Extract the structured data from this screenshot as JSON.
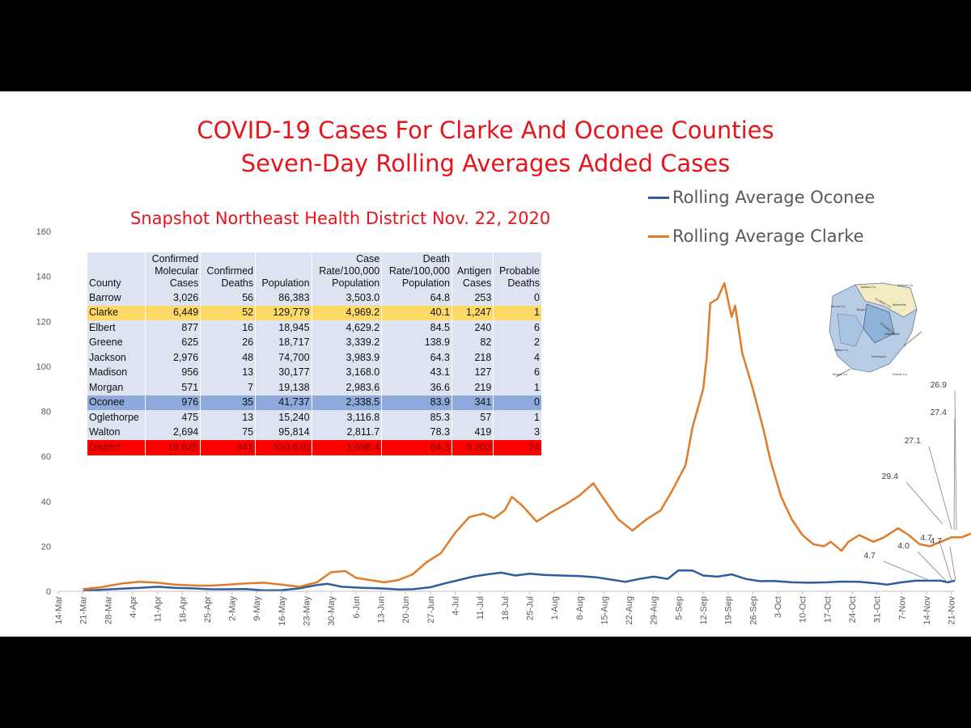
{
  "title": {
    "line1": "COVID-19 Cases For Clarke And Oconee Counties",
    "line2": "Seven-Day Rolling Averages Added Cases"
  },
  "colors": {
    "title": "#e8141c",
    "oconee": "#2e5c9e",
    "clarke": "#e07b2a",
    "clarke_row": "#ffd966",
    "oconee_row": "#8ea9db",
    "district_row": "#ff0000"
  },
  "snapshot": {
    "title": "Snapshot Northeast Health District Nov. 22, 2020",
    "headers": [
      [
        "County"
      ],
      [
        "Confirmed",
        "Molecular",
        "Cases"
      ],
      [
        "Confirmed",
        "Deaths"
      ],
      [
        "Population"
      ],
      [
        "Case",
        "Rate/100,000",
        "Population"
      ],
      [
        "Death",
        "Rate/100,000",
        "Population"
      ],
      [
        "Antigen",
        "Cases"
      ],
      [
        "Probable",
        "Deaths"
      ]
    ],
    "rows": [
      {
        "style": "normal",
        "cells": [
          "Barrow",
          "3,026",
          "56",
          "86,383",
          "3,503.0",
          "64.8",
          "253",
          "0"
        ]
      },
      {
        "style": "clarke",
        "cells": [
          "Clarke",
          "6,449",
          "52",
          "129,779",
          "4,969.2",
          "40.1",
          "1,247",
          "1"
        ]
      },
      {
        "style": "normal",
        "cells": [
          "Elbert",
          "877",
          "16",
          "18,945",
          "4,629.2",
          "84.5",
          "240",
          "6"
        ]
      },
      {
        "style": "normal",
        "cells": [
          "Greene",
          "625",
          "26",
          "18,717",
          "3,339.2",
          "138.9",
          "82",
          "2"
        ]
      },
      {
        "style": "normal",
        "cells": [
          "Jackson",
          "2,976",
          "48",
          "74,700",
          "3,983.9",
          "64.3",
          "218",
          "4"
        ]
      },
      {
        "style": "normal",
        "cells": [
          "Madison",
          "956",
          "13",
          "30,177",
          "3,168.0",
          "43.1",
          "127",
          "6"
        ]
      },
      {
        "style": "normal",
        "cells": [
          "Morgan",
          "571",
          "7",
          "19,138",
          "2,983.6",
          "36.6",
          "219",
          "1"
        ]
      },
      {
        "style": "oconee",
        "cells": [
          "Oconee",
          "976",
          "35",
          "41,737",
          "2,338.5",
          "83.9",
          "341",
          "0"
        ]
      },
      {
        "style": "normal",
        "cells": [
          "Oglethorpe",
          "475",
          "13",
          "15,240",
          "3,116.8",
          "85.3",
          "57",
          "1"
        ]
      },
      {
        "style": "normal",
        "cells": [
          "Walton",
          "2,694",
          "75",
          "95,814",
          "2,811.7",
          "78.3",
          "419",
          "3"
        ]
      },
      {
        "style": "district",
        "cells": [
          "District",
          "19,625",
          "341",
          "530,630",
          "3,698.4",
          "64.3",
          "3,203",
          "24"
        ]
      }
    ]
  },
  "map": {
    "labels": [
      "Jackson Co.",
      "Madison Co.",
      "Barrow Co.",
      "CLARKE CO.",
      "OCONEE CO.",
      "Walton Co.",
      "Morgan Co.",
      "Greene Co.",
      "Bogart",
      "Winterville",
      "Watkinsville",
      "Farmington"
    ],
    "icon": "county-map"
  },
  "chart_data": {
    "type": "line",
    "ylim": [
      0,
      160
    ],
    "yticks": [
      "0",
      "20",
      "40",
      "60",
      "80",
      "100",
      "120",
      "140",
      "160"
    ],
    "x_start": "2020-03-14",
    "x_end": "2020-11-22",
    "xtick_labels": [
      "14-Mar",
      "21-Mar",
      "28-Mar",
      "4-Apr",
      "11-Apr",
      "18-Apr",
      "25-Apr",
      "2-May",
      "9-May",
      "16-May",
      "23-May",
      "30-May",
      "6-Jun",
      "13-Jun",
      "20-Jun",
      "27-Jun",
      "4-Jul",
      "11-Jul",
      "18-Jul",
      "25-Jul",
      "1-Aug",
      "8-Aug",
      "15-Aug",
      "22-Aug",
      "29-Aug",
      "5-Sep",
      "12-Sep",
      "19-Sep",
      "26-Sep",
      "3-Oct",
      "10-Oct",
      "17-Oct",
      "24-Oct",
      "31-Oct",
      "7-Nov",
      "14-Nov",
      "21-Nov"
    ],
    "legend_position": "top-right",
    "series": [
      {
        "name": "Rolling Average Oconee",
        "color": "#2e5c9e",
        "points": [
          [
            "2020-03-21",
            0.2
          ],
          [
            "2020-03-26",
            0.7
          ],
          [
            "2020-04-01",
            1.2
          ],
          [
            "2020-04-06",
            1.5
          ],
          [
            "2020-04-11",
            2.0
          ],
          [
            "2020-04-16",
            1.5
          ],
          [
            "2020-04-21",
            1.3
          ],
          [
            "2020-04-26",
            0.9
          ],
          [
            "2020-05-01",
            0.9
          ],
          [
            "2020-05-06",
            1.0
          ],
          [
            "2020-05-11",
            0.4
          ],
          [
            "2020-05-16",
            0.5
          ],
          [
            "2020-05-21",
            1.3
          ],
          [
            "2020-05-26",
            2.8
          ],
          [
            "2020-05-29",
            3.3
          ],
          [
            "2020-06-02",
            2.0
          ],
          [
            "2020-06-08",
            1.5
          ],
          [
            "2020-06-13",
            1.3
          ],
          [
            "2020-06-18",
            0.8
          ],
          [
            "2020-06-22",
            0.9
          ],
          [
            "2020-06-27",
            1.8
          ],
          [
            "2020-07-01",
            3.5
          ],
          [
            "2020-07-05",
            5.0
          ],
          [
            "2020-07-09",
            6.5
          ],
          [
            "2020-07-13",
            7.5
          ],
          [
            "2020-07-17",
            8.3
          ],
          [
            "2020-07-21",
            7.0
          ],
          [
            "2020-07-25",
            7.8
          ],
          [
            "2020-07-29",
            7.3
          ],
          [
            "2020-08-03",
            7.0
          ],
          [
            "2020-08-08",
            6.8
          ],
          [
            "2020-08-13",
            6.2
          ],
          [
            "2020-08-17",
            5.2
          ],
          [
            "2020-08-21",
            4.2
          ],
          [
            "2020-08-25",
            5.5
          ],
          [
            "2020-08-29",
            6.5
          ],
          [
            "2020-09-02",
            5.5
          ],
          [
            "2020-09-05",
            9.3
          ],
          [
            "2020-09-09",
            9.2
          ],
          [
            "2020-09-12",
            7.0
          ],
          [
            "2020-09-16",
            6.5
          ],
          [
            "2020-09-20",
            7.5
          ],
          [
            "2020-09-24",
            5.5
          ],
          [
            "2020-09-28",
            4.5
          ],
          [
            "2020-10-02",
            4.6
          ],
          [
            "2020-10-07",
            4.0
          ],
          [
            "2020-10-12",
            3.8
          ],
          [
            "2020-10-17",
            4.0
          ],
          [
            "2020-10-21",
            4.3
          ],
          [
            "2020-10-26",
            4.2
          ],
          [
            "2020-10-31",
            3.5
          ],
          [
            "2020-11-03",
            3.0
          ],
          [
            "2020-11-07",
            4.0
          ],
          [
            "2020-11-11",
            4.7
          ],
          [
            "2020-11-15",
            4.7
          ],
          [
            "2020-11-18",
            4.7
          ],
          [
            "2020-11-20",
            4.0
          ],
          [
            "2020-11-22",
            4.7
          ]
        ]
      },
      {
        "name": "Rolling Average Clarke",
        "color": "#e07b2a",
        "points": [
          [
            "2020-03-21",
            1.0
          ],
          [
            "2020-03-26",
            1.8
          ],
          [
            "2020-04-01",
            3.5
          ],
          [
            "2020-04-06",
            4.2
          ],
          [
            "2020-04-11",
            3.8
          ],
          [
            "2020-04-16",
            3.0
          ],
          [
            "2020-04-21",
            2.6
          ],
          [
            "2020-04-26",
            2.5
          ],
          [
            "2020-05-01",
            3.0
          ],
          [
            "2020-05-06",
            3.5
          ],
          [
            "2020-05-11",
            3.8
          ],
          [
            "2020-05-16",
            3.0
          ],
          [
            "2020-05-21",
            2.0
          ],
          [
            "2020-05-26",
            4.0
          ],
          [
            "2020-05-30",
            8.5
          ],
          [
            "2020-06-03",
            9.0
          ],
          [
            "2020-06-06",
            6.0
          ],
          [
            "2020-06-10",
            5.0
          ],
          [
            "2020-06-14",
            4.0
          ],
          [
            "2020-06-18",
            5.0
          ],
          [
            "2020-06-22",
            7.5
          ],
          [
            "2020-06-26",
            13.0
          ],
          [
            "2020-06-30",
            17.0
          ],
          [
            "2020-07-04",
            26.0
          ],
          [
            "2020-07-08",
            33.0
          ],
          [
            "2020-07-12",
            34.5
          ],
          [
            "2020-07-15",
            32.5
          ],
          [
            "2020-07-18",
            36.0
          ],
          [
            "2020-07-20",
            42.0
          ],
          [
            "2020-07-23",
            38.0
          ],
          [
            "2020-07-27",
            31.0
          ],
          [
            "2020-07-31",
            35.0
          ],
          [
            "2020-08-04",
            38.5
          ],
          [
            "2020-08-08",
            42.5
          ],
          [
            "2020-08-12",
            48.0
          ],
          [
            "2020-08-15",
            41.0
          ],
          [
            "2020-08-19",
            32.0
          ],
          [
            "2020-08-23",
            27.0
          ],
          [
            "2020-08-27",
            32.0
          ],
          [
            "2020-08-31",
            36.0
          ],
          [
            "2020-09-03",
            44.0
          ],
          [
            "2020-09-07",
            56.0
          ],
          [
            "2020-09-09",
            73.0
          ],
          [
            "2020-09-12",
            90.0
          ],
          [
            "2020-09-13",
            104.0
          ],
          [
            "2020-09-14",
            128.0
          ],
          [
            "2020-09-16",
            130.0
          ],
          [
            "2020-09-18",
            137.0
          ],
          [
            "2020-09-20",
            122.0
          ],
          [
            "2020-09-21",
            127.0
          ],
          [
            "2020-09-23",
            106.0
          ],
          [
            "2020-09-26",
            90.0
          ],
          [
            "2020-09-29",
            72.0
          ],
          [
            "2020-10-01",
            58.0
          ],
          [
            "2020-10-04",
            42.0
          ],
          [
            "2020-10-07",
            32.0
          ],
          [
            "2020-10-10",
            25.0
          ],
          [
            "2020-10-13",
            21.0
          ],
          [
            "2020-10-16",
            20.0
          ],
          [
            "2020-10-18",
            22.0
          ],
          [
            "2020-10-21",
            18.0
          ],
          [
            "2020-10-23",
            22.0
          ],
          [
            "2020-10-26",
            25.0
          ],
          [
            "2020-10-30",
            22.0
          ],
          [
            "2020-11-02",
            24.0
          ],
          [
            "2020-11-06",
            28.0
          ],
          [
            "2020-11-09",
            25.0
          ],
          [
            "2020-11-12",
            21.0
          ],
          [
            "2020-11-15",
            20.0
          ],
          [
            "2020-11-18",
            22.0
          ],
          [
            "2020-11-21",
            24.0
          ],
          [
            "2020-11-24",
            24.0
          ],
          [
            "2020-11-27",
            26.0
          ]
        ]
      }
    ],
    "annotations": [
      {
        "label": "26.9",
        "series": "Rolling Average Clarke"
      },
      {
        "label": "27.4",
        "series": "Rolling Average Clarke"
      },
      {
        "label": "27.1",
        "series": "Rolling Average Clarke"
      },
      {
        "label": "29.4",
        "series": "Rolling Average Clarke"
      },
      {
        "label": "4.7",
        "series": "Rolling Average Oconee"
      },
      {
        "label": "4.0",
        "series": "Rolling Average Oconee"
      },
      {
        "label": "4.7",
        "series": "Rolling Average Oconee"
      },
      {
        "label": "4.7",
        "series": "Rolling Average Oconee"
      }
    ]
  }
}
